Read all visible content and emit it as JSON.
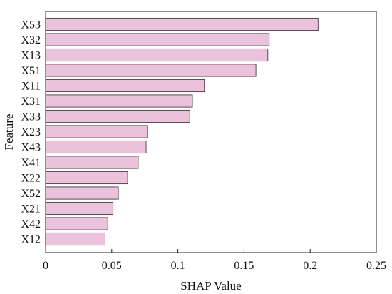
{
  "chart_data": {
    "type": "bar",
    "orientation": "horizontal",
    "categories": [
      "X53",
      "X32",
      "X13",
      "X51",
      "X11",
      "X31",
      "X33",
      "X23",
      "X43",
      "X41",
      "X22",
      "X52",
      "X21",
      "X42",
      "X12"
    ],
    "values": [
      0.206,
      0.169,
      0.168,
      0.159,
      0.12,
      0.111,
      0.109,
      0.077,
      0.076,
      0.07,
      0.062,
      0.055,
      0.051,
      0.047,
      0.045
    ],
    "title": "",
    "xlabel": "SHAP Value",
    "ylabel": "Feature",
    "xlim": [
      0,
      0.25
    ],
    "xticks": [
      0,
      0.05,
      0.1,
      0.15,
      0.2,
      0.25
    ],
    "xtick_labels": [
      "0",
      "0.05",
      "0.1",
      "0.15",
      "0.2",
      "0.25"
    ],
    "grid": false,
    "legend": "none",
    "colors": {
      "bar_fill": "#ebc2dc",
      "bar_edge": "#4a3a44",
      "axis": "#222222"
    }
  }
}
